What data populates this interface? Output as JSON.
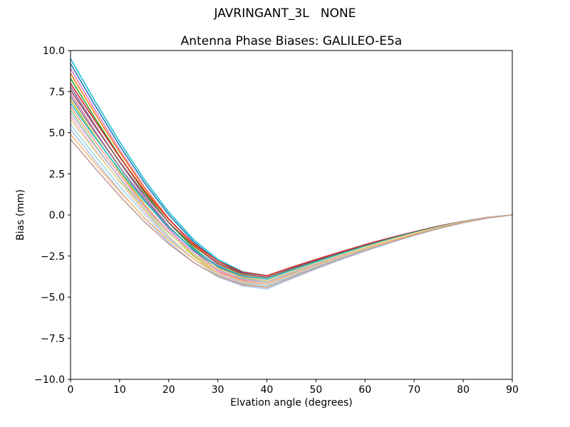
{
  "chart_data": {
    "type": "line",
    "suptitle": "JAVRINGANT_3L   NONE",
    "title": "Antenna Phase Biases: GALILEO-E5a",
    "xlabel": "Elvation angle (degrees)",
    "ylabel": "Bias (mm)",
    "xlim": [
      0,
      90
    ],
    "ylim": [
      -10,
      10
    ],
    "grid": false,
    "legend": "none",
    "colors": {
      "background": "#ffffff",
      "axes": "#000000",
      "text": "#000000"
    },
    "x_ticks": [
      0,
      10,
      20,
      30,
      40,
      50,
      60,
      70,
      80,
      90
    ],
    "x_tick_labels": [
      "0",
      "10",
      "20",
      "30",
      "40",
      "50",
      "60",
      "70",
      "80",
      "90"
    ],
    "y_ticks": [
      10,
      7.5,
      5,
      2.5,
      0,
      -2.5,
      -5,
      -7.5,
      -10
    ],
    "y_tick_labels": [
      "10.0",
      "7.5",
      "5.0",
      "2.5",
      "0.0",
      "−2.5",
      "−5.0",
      "−7.5",
      "−10.0"
    ],
    "x": [
      0,
      5,
      10,
      15,
      20,
      25,
      30,
      35,
      40,
      45,
      50,
      55,
      60,
      65,
      70,
      75,
      80,
      85,
      90
    ],
    "series": [
      {
        "name": "s01",
        "color": "#17becf",
        "values": [
          9.5,
          6.92,
          4.45,
          2.17,
          0.17,
          -1.48,
          -2.7,
          -3.45,
          -3.7,
          -3.19,
          -2.71,
          -2.25,
          -1.81,
          -1.4,
          -1.03,
          -0.68,
          -0.39,
          -0.15,
          0
        ]
      },
      {
        "name": "s02",
        "color": "#1f77b4",
        "values": [
          9.2,
          6.66,
          4.22,
          1.98,
          0.01,
          -1.61,
          -2.81,
          -3.55,
          -3.8,
          -3.28,
          -2.78,
          -2.31,
          -1.86,
          -1.44,
          -1.05,
          -0.7,
          -0.4,
          -0.15,
          0
        ]
      },
      {
        "name": "s03",
        "color": "#e377c2",
        "values": [
          8.9,
          6.38,
          3.96,
          1.73,
          -0.22,
          -1.83,
          -3.02,
          -3.75,
          -4.0,
          -3.45,
          -2.93,
          -2.43,
          -1.96,
          -1.52,
          -1.11,
          -0.74,
          -0.42,
          -0.16,
          0
        ]
      },
      {
        "name": "s04",
        "color": "#ff7f0e",
        "values": [
          8.6,
          6.16,
          3.82,
          1.66,
          -0.24,
          -1.79,
          -2.95,
          -3.66,
          -3.9,
          -3.36,
          -2.85,
          -2.37,
          -1.91,
          -1.48,
          -1.08,
          -0.72,
          -0.41,
          -0.16,
          0
        ]
      },
      {
        "name": "s05",
        "color": "#2ca02c",
        "values": [
          8.3,
          5.88,
          3.56,
          1.41,
          -0.47,
          -2.01,
          -3.16,
          -3.86,
          -4.1,
          -3.54,
          -3.0,
          -2.49,
          -2.0,
          -1.55,
          -1.14,
          -0.76,
          -0.43,
          -0.16,
          0
        ]
      },
      {
        "name": "s06",
        "color": "#d62728",
        "values": [
          8.0,
          5.72,
          3.52,
          1.5,
          -0.27,
          -1.73,
          -2.81,
          -3.48,
          -3.7,
          -3.19,
          -2.71,
          -2.25,
          -1.81,
          -1.4,
          -1.03,
          -0.68,
          -0.39,
          -0.15,
          0
        ]
      },
      {
        "name": "s07",
        "color": "#9467bd",
        "values": [
          7.8,
          5.46,
          3.21,
          1.13,
          -0.69,
          -2.18,
          -3.29,
          -3.97,
          -4.2,
          -3.62,
          -3.07,
          -2.55,
          -2.05,
          -1.59,
          -1.16,
          -0.78,
          -0.44,
          -0.17,
          0
        ]
      },
      {
        "name": "s08",
        "color": "#8c564b",
        "values": [
          7.6,
          5.38,
          3.24,
          1.27,
          -0.46,
          -1.88,
          -2.93,
          -3.58,
          -3.8,
          -3.28,
          -2.78,
          -2.31,
          -1.86,
          -1.44,
          -1.05,
          -0.7,
          -0.4,
          -0.15,
          0
        ]
      },
      {
        "name": "s09",
        "color": "#e377c2",
        "values": [
          7.4,
          5.12,
          2.92,
          0.9,
          -0.87,
          -2.33,
          -3.41,
          -4.08,
          -4.3,
          -3.71,
          -3.15,
          -2.61,
          -2.1,
          -1.63,
          -1.19,
          -0.8,
          -0.45,
          -0.17,
          0
        ]
      },
      {
        "name": "s10",
        "color": "#7f7f7f",
        "values": [
          7.2,
          5.01,
          2.91,
          0.98,
          -0.72,
          -2.11,
          -3.15,
          -3.78,
          -4.0,
          -3.45,
          -2.93,
          -2.43,
          -1.96,
          -1.52,
          -1.11,
          -0.74,
          -0.42,
          -0.16,
          0
        ]
      },
      {
        "name": "s11",
        "color": "#bcbd22",
        "values": [
          7.0,
          4.78,
          2.64,
          0.67,
          -1.06,
          -2.48,
          -3.53,
          -4.18,
          -4.4,
          -3.8,
          -3.22,
          -2.67,
          -2.15,
          -1.67,
          -1.22,
          -0.81,
          -0.46,
          -0.18,
          0
        ]
      },
      {
        "name": "s12",
        "color": "#17becf",
        "values": [
          6.8,
          4.71,
          2.71,
          0.86,
          -0.77,
          -2.1,
          -3.09,
          -3.69,
          -3.9,
          -3.36,
          -2.85,
          -2.37,
          -1.91,
          -1.48,
          -1.08,
          -0.72,
          -0.41,
          -0.16,
          0
        ]
      },
      {
        "name": "s13",
        "color": "#ff9896",
        "values": [
          6.6,
          4.49,
          2.47,
          0.6,
          -1.04,
          -2.38,
          -3.38,
          -3.99,
          -4.2,
          -3.62,
          -3.07,
          -2.55,
          -2.05,
          -1.59,
          -1.16,
          -0.78,
          -0.44,
          -0.17,
          0
        ]
      },
      {
        "name": "s14",
        "color": "#98df8a",
        "values": [
          6.4,
          4.27,
          2.23,
          0.34,
          -1.31,
          -2.66,
          -3.67,
          -4.29,
          -4.5,
          -3.88,
          -3.29,
          -2.73,
          -2.2,
          -1.71,
          -1.25,
          -0.83,
          -0.48,
          -0.18,
          0
        ]
      },
      {
        "name": "s15",
        "color": "#c5b0d5",
        "values": [
          6.2,
          4.19,
          2.26,
          0.48,
          -1.08,
          -2.36,
          -3.32,
          -3.9,
          -4.1,
          -3.54,
          -3.0,
          -2.49,
          -2.0,
          -1.55,
          -1.14,
          -0.76,
          -0.43,
          -0.16,
          0
        ]
      },
      {
        "name": "s16",
        "color": "#f7b6d2",
        "values": [
          6.0,
          3.97,
          2.02,
          0.22,
          -1.35,
          -2.65,
          -3.61,
          -4.2,
          -4.4,
          -3.8,
          -3.22,
          -2.67,
          -2.15,
          -1.67,
          -1.22,
          -0.81,
          -0.46,
          -0.18,
          0
        ]
      },
      {
        "name": "s17",
        "color": "#dbdb8d",
        "values": [
          5.8,
          3.89,
          2.05,
          0.36,
          -1.13,
          -2.35,
          -3.25,
          -3.81,
          -4.0,
          -3.45,
          -2.93,
          -2.43,
          -1.96,
          -1.52,
          -1.11,
          -0.74,
          -0.42,
          -0.16,
          0
        ]
      },
      {
        "name": "s18",
        "color": "#9edae5",
        "values": [
          5.5,
          3.59,
          1.75,
          0.06,
          -1.43,
          -2.65,
          -3.55,
          -4.11,
          -4.3,
          -3.71,
          -3.15,
          -2.61,
          -2.1,
          -1.63,
          -1.19,
          -0.8,
          -0.45,
          -0.17,
          0
        ]
      },
      {
        "name": "s19",
        "color": "#aec7e8",
        "values": [
          5.2,
          3.31,
          1.49,
          -0.19,
          -1.66,
          -2.87,
          -3.76,
          -4.31,
          -4.5,
          -3.88,
          -3.29,
          -2.73,
          -2.2,
          -1.71,
          -1.25,
          -0.83,
          -0.48,
          -0.18,
          0
        ]
      },
      {
        "name": "s20",
        "color": "#ffbb78",
        "values": [
          4.9,
          3.13,
          1.42,
          -0.16,
          -1.53,
          -2.67,
          -3.51,
          -4.03,
          -4.2,
          -3.62,
          -3.07,
          -2.55,
          -2.05,
          -1.59,
          -1.16,
          -0.78,
          -0.44,
          -0.17,
          0
        ]
      },
      {
        "name": "s21",
        "color": "#c49c94",
        "values": [
          4.6,
          2.84,
          1.16,
          -0.4,
          -1.76,
          -2.88,
          -3.72,
          -4.23,
          -4.4,
          -3.8,
          -3.22,
          -2.67,
          -2.15,
          -1.67,
          -1.22,
          -0.81,
          -0.46,
          -0.18,
          0
        ]
      }
    ]
  }
}
